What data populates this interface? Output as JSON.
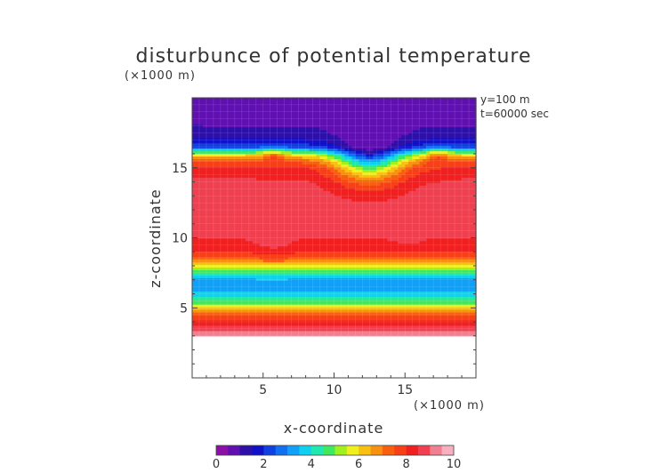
{
  "chart_data": {
    "type": "heatmap",
    "title": "disturbunce of potential temperature",
    "y_unit_label": "(×1000 m)",
    "x_unit_label": "(×1000 m)",
    "xlabel": "x-coordinate",
    "ylabel": "z-coordinate",
    "annotations": [
      "y=100 m",
      "t=60000 sec"
    ],
    "xlim": [
      0,
      20
    ],
    "ylim": [
      0,
      20
    ],
    "x_ticks": [
      5,
      10,
      15
    ],
    "y_ticks": [
      5,
      10,
      15
    ],
    "colorbar": {
      "range": [
        0,
        10
      ],
      "ticks": [
        0,
        2,
        4,
        6,
        8,
        10
      ],
      "colors": [
        "#8a10a8",
        "#6010b0",
        "#2c10a8",
        "#1010c8",
        "#1040e0",
        "#1070f0",
        "#10a0f8",
        "#10d0f0",
        "#20e8b0",
        "#40e860",
        "#a0f020",
        "#f0f020",
        "#f8c010",
        "#f89010",
        "#f86010",
        "#f84018",
        "#f02020",
        "#f04050",
        "#f08090",
        "#f8b0c0"
      ]
    },
    "profile_z": [
      3,
      3.5,
      4,
      4.5,
      5,
      5.5,
      6,
      6.5,
      7,
      7.5,
      8,
      8.5,
      9,
      9.5,
      10,
      11,
      12,
      13,
      14,
      15,
      15.5,
      16,
      16.5,
      17,
      17.5,
      18
    ],
    "profile_value": [
      9.4,
      8.8,
      8.2,
      7.6,
      6.0,
      4.6,
      3.8,
      3.2,
      3.4,
      4.2,
      5.6,
      7.3,
      8.0,
      8.3,
      8.5,
      8.7,
      8.8,
      8.7,
      8.6,
      8.2,
      7.4,
      5.8,
      2.4,
      1.6,
      1.2,
      1.0
    ],
    "features": [
      {
        "kind": "tongue",
        "x": 5.7,
        "z": 10.5,
        "radius": 1.3,
        "value": 8.9
      },
      {
        "kind": "tongue",
        "x": 15.2,
        "z": 10.8,
        "radius": 1.1,
        "value": 8.9
      },
      {
        "kind": "patch",
        "x": 2.5,
        "z": 12.8,
        "radius": 1.1,
        "value": 9.0
      },
      {
        "kind": "dip",
        "x": 5.7,
        "z": 15.3,
        "radius": 0.8,
        "value": 8.0
      },
      {
        "kind": "dip",
        "x": 17.3,
        "z": 15.3,
        "radius": 0.8,
        "value": 8.0
      },
      {
        "kind": "thin",
        "x": 12.5,
        "z": 17.3,
        "radius": 2.5,
        "value": 0.5
      }
    ]
  }
}
